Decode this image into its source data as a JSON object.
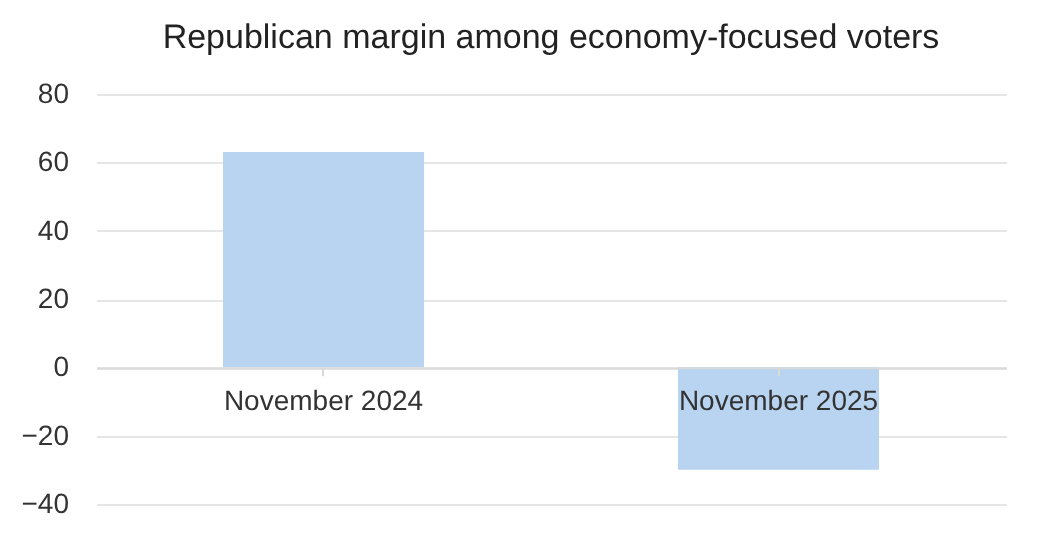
{
  "chart_data": {
    "type": "bar",
    "title": "Republican margin among economy-focused voters",
    "categories": [
      "November 2024",
      "November 2025"
    ],
    "values": [
      63,
      -30
    ],
    "color": "#b8d4f0",
    "ylim": [
      -40,
      80
    ],
    "yticks": [
      -40,
      -20,
      0,
      20,
      40,
      60,
      80
    ],
    "grid": "y"
  }
}
